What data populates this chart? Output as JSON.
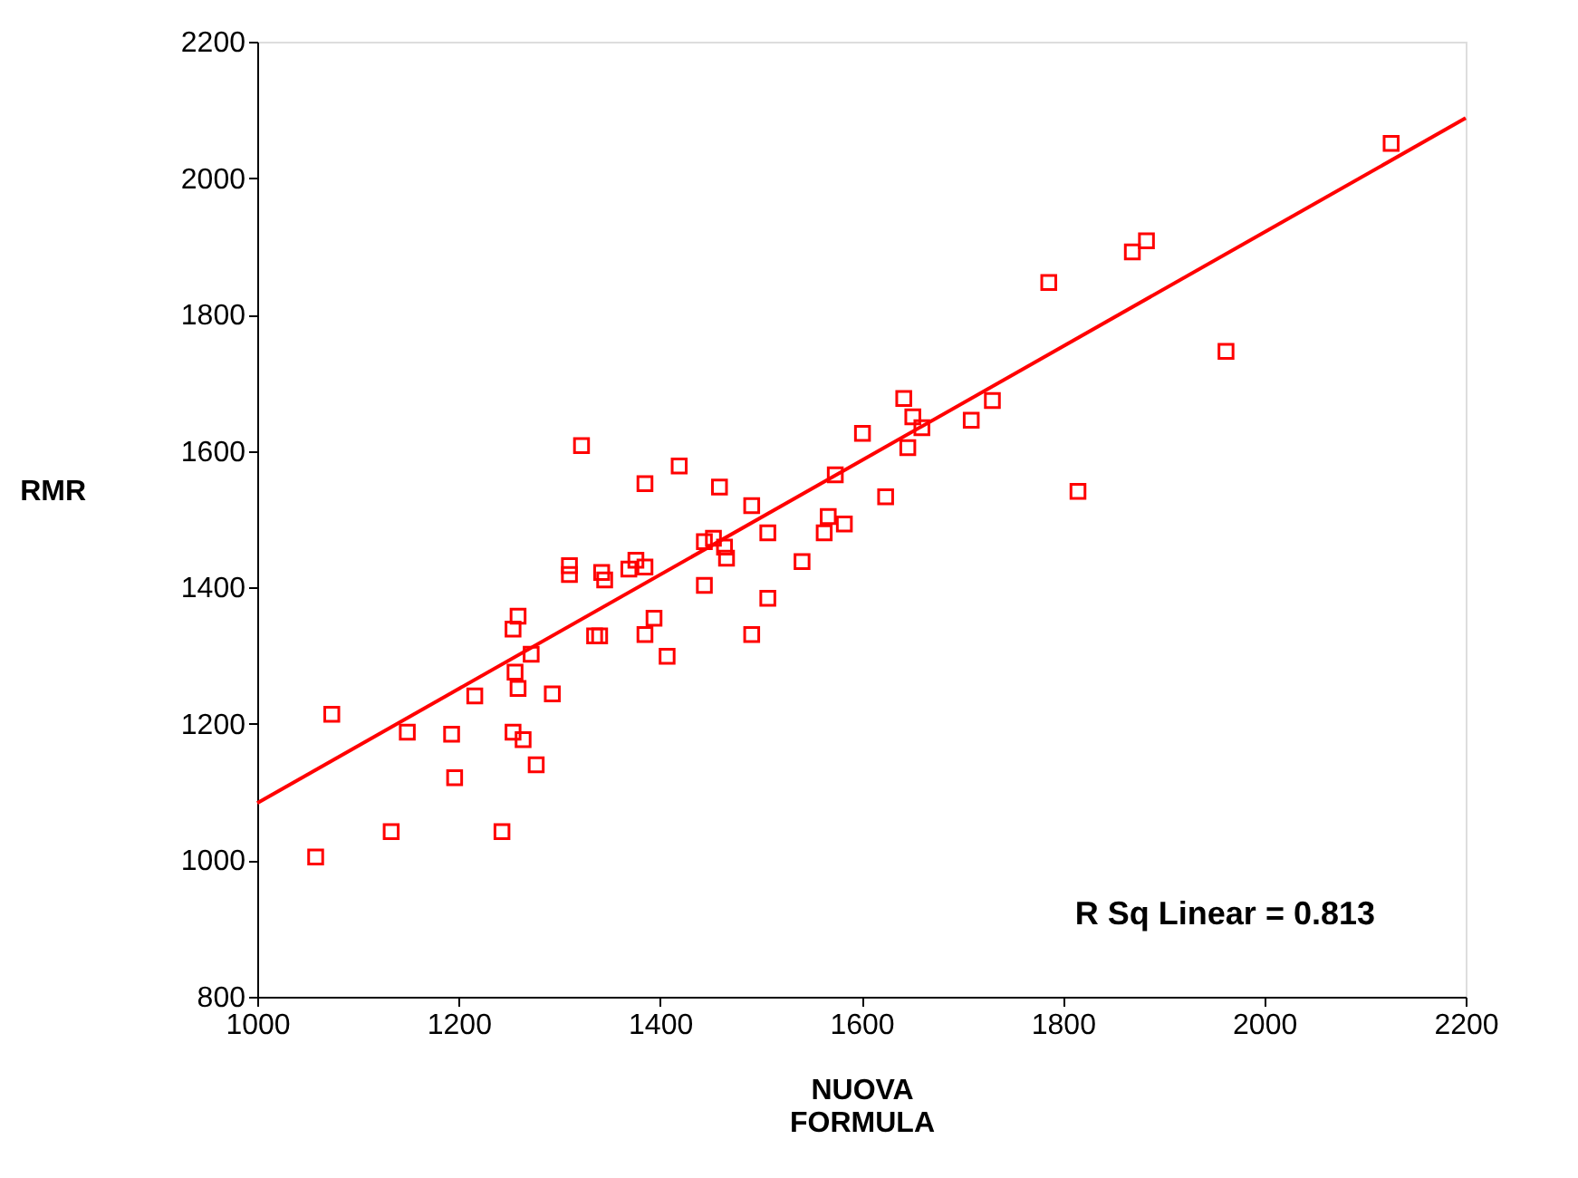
{
  "chart_data": {
    "type": "scatter",
    "xlabel": "NUOVA FORMULA",
    "ylabel": "RMR",
    "xlim": [
      1000,
      2200
    ],
    "xticks": [
      1000,
      1200,
      1400,
      1600,
      1800,
      2000,
      2200
    ],
    "ylim": [
      800,
      2200
    ],
    "yticks": [
      800,
      1000,
      1200,
      1400,
      1600,
      1800,
      2000,
      2200
    ],
    "grid": false,
    "annotations": [
      "R Sq Linear = 0.813"
    ],
    "series": [
      {
        "color": "#ff0000",
        "marker": "square",
        "x": [
          1058,
          1074,
          1133,
          1149,
          1193,
          1196,
          1216,
          1243,
          1254,
          1254,
          1259,
          1256,
          1259,
          1264,
          1277,
          1272,
          1293,
          1310,
          1310,
          1322,
          1335,
          1340,
          1342,
          1345,
          1369,
          1376,
          1385,
          1385,
          1385,
          1394,
          1407,
          1419,
          1444,
          1444,
          1453,
          1459,
          1464,
          1466,
          1491,
          1491,
          1507,
          1507,
          1541,
          1563,
          1567,
          1574,
          1583,
          1601,
          1624,
          1642,
          1646,
          1651,
          1660,
          1709,
          1730,
          1786,
          1815,
          1869,
          1883,
          1962,
          2126
        ],
        "values": [
          1005,
          1214,
          1042,
          1188,
          1185,
          1121,
          1241,
          1042,
          1188,
          1339,
          1358,
          1276,
          1252,
          1177,
          1140,
          1302,
          1244,
          1432,
          1419,
          1608,
          1329,
          1329,
          1422,
          1411,
          1427,
          1440,
          1552,
          1331,
          1430,
          1355,
          1299,
          1578,
          1403,
          1467,
          1472,
          1547,
          1459,
          1443,
          1520,
          1331,
          1480,
          1384,
          1438,
          1480,
          1504,
          1565,
          1493,
          1626,
          1533,
          1677,
          1605,
          1650,
          1634,
          1645,
          1674,
          1847,
          1541,
          1892,
          1908,
          1746,
          2051
        ]
      },
      {
        "type": "line",
        "color": "#ff0000",
        "x": [
          1000,
          2200
        ],
        "values": [
          1084,
          2088
        ],
        "line_style": "solid",
        "marker": "none"
      }
    ]
  }
}
